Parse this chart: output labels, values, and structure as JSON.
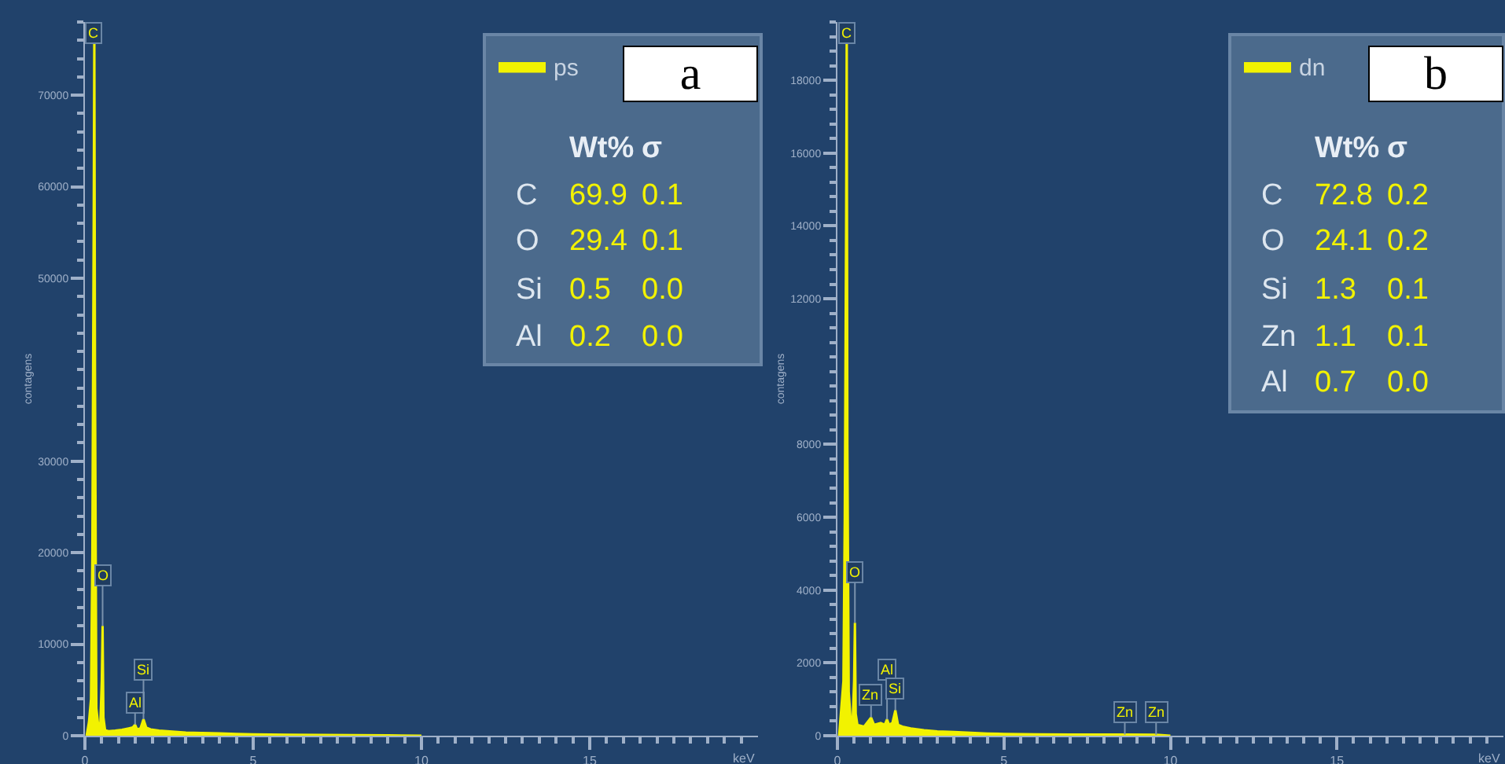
{
  "chart_data": [
    {
      "type": "area",
      "xlabel": "keV",
      "ylabel": "contagens",
      "legend": "top right",
      "x": [
        0.05,
        0.12,
        0.18,
        0.22,
        0.26,
        0.28,
        0.3,
        0.34,
        0.4,
        0.46,
        0.5,
        0.525,
        0.55,
        0.6,
        0.7,
        0.9,
        1.1,
        1.3,
        1.42,
        1.49,
        1.55,
        1.65,
        1.74,
        1.82,
        1.95,
        2.2,
        2.6,
        3.0,
        3.5,
        4.0,
        4.5,
        5,
        6,
        7,
        8,
        9,
        10
      ],
      "series": [
        {
          "name": "ps",
          "color": "#f2f200",
          "values": [
            0,
            1500,
            4000,
            20000,
            56000,
            78000,
            40000,
            3000,
            1000,
            1500,
            6000,
            12000,
            2000,
            600,
            500,
            550,
            650,
            800,
            900,
            1200,
            700,
            800,
            1800,
            900,
            700,
            550,
            450,
            350,
            300,
            250,
            200,
            150,
            100,
            80,
            60,
            40,
            0
          ]
        }
      ],
      "xlim": [
        0,
        20
      ],
      "xticks": [
        0,
        {
          "value": 0.5,
          "label": null
        },
        {
          "value": 1,
          "label": null
        },
        {
          "value": 1.5,
          "label": null
        },
        {
          "value": 2,
          "label": null
        },
        {
          "value": 2.5,
          "label": null
        },
        {
          "value": 3,
          "label": null
        },
        {
          "value": 3.5,
          "label": null
        },
        {
          "value": 4,
          "label": null
        },
        {
          "value": 4.5,
          "label": null
        },
        5,
        {
          "value": 5.5,
          "label": null
        },
        {
          "value": 6,
          "label": null
        },
        {
          "value": 6.5,
          "label": null
        },
        {
          "value": 7,
          "label": null
        },
        {
          "value": 7.5,
          "label": null
        },
        {
          "value": 8,
          "label": null
        },
        {
          "value": 8.5,
          "label": null
        },
        {
          "value": 9,
          "label": null
        },
        {
          "value": 9.5,
          "label": null
        },
        10,
        {
          "value": 10.5,
          "label": null
        },
        {
          "value": 11,
          "label": null
        },
        {
          "value": 11.5,
          "label": null
        },
        {
          "value": 12,
          "label": null
        },
        {
          "value": 12.5,
          "label": null
        },
        {
          "value": 13,
          "label": null
        },
        {
          "value": 13.5,
          "label": null
        },
        {
          "value": 14,
          "label": null
        },
        {
          "value": 14.5,
          "label": null
        },
        15,
        {
          "value": 15.5,
          "label": null
        },
        {
          "value": 16,
          "label": null
        },
        {
          "value": 16.5,
          "label": null
        },
        {
          "value": 17,
          "label": null
        },
        {
          "value": 17.5,
          "label": null
        },
        {
          "value": 18,
          "label": null
        },
        {
          "value": 18.5,
          "label": null
        },
        {
          "value": 19,
          "label": null
        },
        {
          "value": 19.5,
          "label": null
        }
      ],
      "ylim": [
        0,
        78000
      ],
      "yticks": [
        0,
        {
          "value": 2000,
          "label": null
        },
        {
          "value": 4000,
          "label": null
        },
        {
          "value": 6000,
          "label": null
        },
        {
          "value": 8000,
          "label": null
        },
        10000,
        {
          "value": 12000,
          "label": null
        },
        {
          "value": 14000,
          "label": null
        },
        {
          "value": 16000,
          "label": null
        },
        {
          "value": 18000,
          "label": null
        },
        20000,
        {
          "value": 22000,
          "label": null
        },
        {
          "value": 24000,
          "label": null
        },
        {
          "value": 26000,
          "label": null
        },
        {
          "value": 28000,
          "label": null
        },
        30000,
        {
          "value": 32000,
          "label": null
        },
        {
          "value": 34000,
          "label": null
        },
        {
          "value": 36000,
          "label": null
        },
        {
          "value": 38000,
          "label": null
        },
        {
          "value": 40000,
          "label": null
        },
        {
          "value": 42000,
          "label": null
        },
        {
          "value": 44000,
          "label": null
        },
        {
          "value": 46000,
          "label": null
        },
        {
          "value": 48000,
          "label": null
        },
        50000,
        {
          "value": 52000,
          "label": null
        },
        {
          "value": 54000,
          "label": null
        },
        {
          "value": 56000,
          "label": null
        },
        {
          "value": 58000,
          "label": null
        },
        60000,
        {
          "value": 62000,
          "label": null
        },
        {
          "value": 64000,
          "label": null
        },
        {
          "value": 66000,
          "label": null
        },
        {
          "value": 68000,
          "label": null
        },
        70000,
        {
          "value": 72000,
          "label": null
        },
        {
          "value": 74000,
          "label": null
        },
        {
          "value": 76000,
          "label": null
        },
        {
          "value": 78000,
          "label": null
        }
      ],
      "annotations": [
        {
          "text": "C",
          "x": 0.28,
          "y": 78000
        },
        {
          "text": "O",
          "x": 0.525,
          "y": 12000
        },
        {
          "text": "Al",
          "x": 1.49,
          "y": 1200
        },
        {
          "text": "Si",
          "x": 1.74,
          "y": 1800
        },
        "a",
        "Wt% σ",
        "C 69.9 0.1",
        "O 29.4 0.1",
        "Si 0.5 0.0",
        "Al 0.2 0.0"
      ]
    },
    {
      "type": "area",
      "xlabel": "keV",
      "ylabel": "contagens",
      "legend": "top right",
      "x": [
        0.05,
        0.12,
        0.18,
        0.22,
        0.26,
        0.28,
        0.3,
        0.34,
        0.4,
        0.46,
        0.5,
        0.525,
        0.55,
        0.6,
        0.8,
        1.01,
        1.1,
        1.3,
        1.42,
        1.49,
        1.55,
        1.65,
        1.74,
        1.82,
        1.95,
        2.2,
        2.6,
        3.0,
        3.5,
        4.0,
        4.5,
        5,
        6,
        7,
        8.63,
        9.57,
        10
      ],
      "series": [
        {
          "name": "dn",
          "color": "#f2f200",
          "values": [
            0,
            800,
            1500,
            6000,
            14000,
            19600,
            8000,
            1200,
            400,
            500,
            1500,
            3100,
            600,
            300,
            250,
            500,
            300,
            350,
            300,
            450,
            300,
            350,
            700,
            300,
            250,
            200,
            150,
            120,
            100,
            80,
            60,
            50,
            40,
            30,
            30,
            25,
            0
          ]
        }
      ],
      "xlim": [
        0,
        20
      ],
      "xticks": [
        0,
        {
          "value": 0.5,
          "label": null
        },
        {
          "value": 1,
          "label": null
        },
        {
          "value": 1.5,
          "label": null
        },
        {
          "value": 2,
          "label": null
        },
        {
          "value": 2.5,
          "label": null
        },
        {
          "value": 3,
          "label": null
        },
        {
          "value": 3.5,
          "label": null
        },
        {
          "value": 4,
          "label": null
        },
        {
          "value": 4.5,
          "label": null
        },
        5,
        {
          "value": 5.5,
          "label": null
        },
        {
          "value": 6,
          "label": null
        },
        {
          "value": 6.5,
          "label": null
        },
        {
          "value": 7,
          "label": null
        },
        {
          "value": 7.5,
          "label": null
        },
        {
          "value": 8,
          "label": null
        },
        {
          "value": 8.5,
          "label": null
        },
        {
          "value": 9,
          "label": null
        },
        {
          "value": 9.5,
          "label": null
        },
        10,
        {
          "value": 10.5,
          "label": null
        },
        {
          "value": 11,
          "label": null
        },
        {
          "value": 11.5,
          "label": null
        },
        {
          "value": 12,
          "label": null
        },
        {
          "value": 12.5,
          "label": null
        },
        {
          "value": 13,
          "label": null
        },
        {
          "value": 13.5,
          "label": null
        },
        {
          "value": 14,
          "label": null
        },
        {
          "value": 14.5,
          "label": null
        },
        15,
        {
          "value": 15.5,
          "label": null
        },
        {
          "value": 16,
          "label": null
        },
        {
          "value": 16.5,
          "label": null
        },
        {
          "value": 17,
          "label": null
        },
        {
          "value": 17.5,
          "label": null
        },
        {
          "value": 18,
          "label": null
        },
        {
          "value": 18.5,
          "label": null
        },
        {
          "value": 19,
          "label": null
        },
        {
          "value": 19.5,
          "label": null
        }
      ],
      "ylim": [
        0,
        19600
      ],
      "yticks": [
        0,
        {
          "value": 400,
          "label": null
        },
        {
          "value": 800,
          "label": null
        },
        {
          "value": 1200,
          "label": null
        },
        {
          "value": 1600,
          "label": null
        },
        2000,
        {
          "value": 2400,
          "label": null
        },
        {
          "value": 2800,
          "label": null
        },
        {
          "value": 3200,
          "label": null
        },
        {
          "value": 3600,
          "label": null
        },
        4000,
        {
          "value": 4400,
          "label": null
        },
        {
          "value": 4800,
          "label": null
        },
        {
          "value": 5200,
          "label": null
        },
        {
          "value": 5600,
          "label": null
        },
        6000,
        {
          "value": 6400,
          "label": null
        },
        {
          "value": 6800,
          "label": null
        },
        {
          "value": 7200,
          "label": null
        },
        {
          "value": 7600,
          "label": null
        },
        8000,
        {
          "value": 8400,
          "label": null
        },
        {
          "value": 8800,
          "label": null
        },
        {
          "value": 9200,
          "label": null
        },
        {
          "value": 9600,
          "label": null
        },
        {
          "value": 10000,
          "label": null
        },
        {
          "value": 10400,
          "label": null
        },
        {
          "value": 10800,
          "label": null
        },
        {
          "value": 11200,
          "label": null
        },
        {
          "value": 11600,
          "label": null
        },
        12000,
        {
          "value": 12400,
          "label": null
        },
        {
          "value": 12800,
          "label": null
        },
        {
          "value": 13200,
          "label": null
        },
        {
          "value": 13600,
          "label": null
        },
        14000,
        {
          "value": 14400,
          "label": null
        },
        {
          "value": 14800,
          "label": null
        },
        {
          "value": 15200,
          "label": null
        },
        {
          "value": 15600,
          "label": null
        },
        16000,
        {
          "value": 16400,
          "label": null
        },
        {
          "value": 16800,
          "label": null
        },
        {
          "value": 17200,
          "label": null
        },
        {
          "value": 17600,
          "label": null
        },
        18000,
        {
          "value": 18400,
          "label": null
        },
        {
          "value": 18800,
          "label": null
        },
        {
          "value": 19200,
          "label": null
        },
        {
          "value": 19600,
          "label": null
        }
      ],
      "annotations": [
        {
          "text": "C",
          "x": 0.28,
          "y": 19600
        },
        {
          "text": "O",
          "x": 0.525,
          "y": 3100
        },
        {
          "text": "Zn",
          "x": 1.01,
          "y": 500
        },
        {
          "text": "Al",
          "x": 1.49,
          "y": 450
        },
        {
          "text": "Si",
          "x": 1.74,
          "y": 700
        },
        {
          "text": "Zn",
          "x": 8.63,
          "y": 30
        },
        {
          "text": "Zn",
          "x": 9.57,
          "y": 25
        },
        "b",
        "Wt% σ",
        "C 72.8 0.2",
        "O 24.1 0.2",
        "Si 1.3 0.1",
        "Zn 1.1 0.1",
        "Al 0.7 0.0"
      ]
    }
  ]
}
